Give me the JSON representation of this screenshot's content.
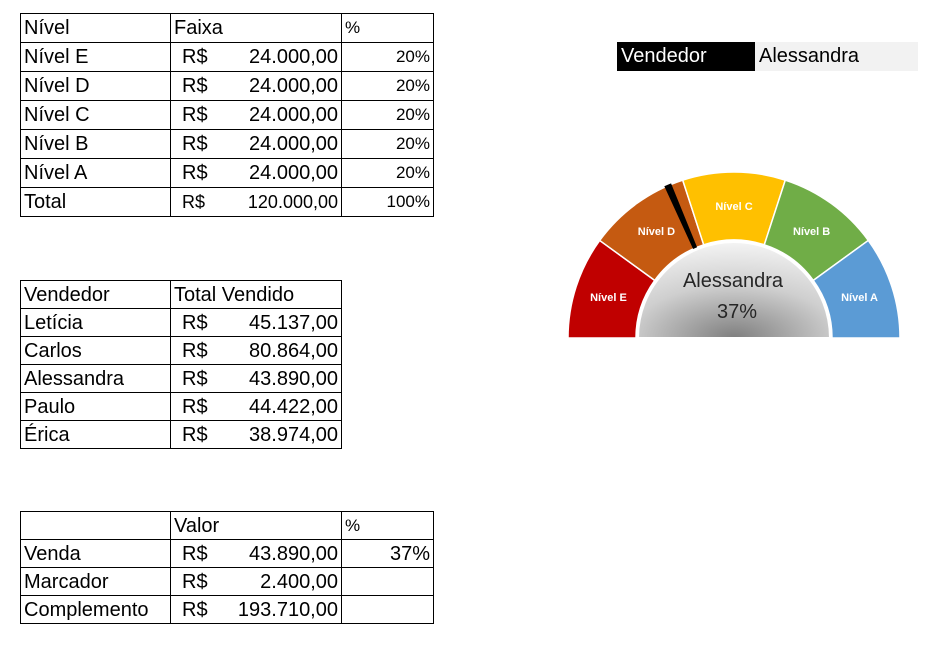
{
  "levels_table": {
    "headers": [
      "Nível",
      "Faixa",
      "%"
    ],
    "rows": [
      {
        "nivel": "Nível E",
        "currency": "R$",
        "faixa": "24.000,00",
        "pct": "20%"
      },
      {
        "nivel": "Nível D",
        "currency": "R$",
        "faixa": "24.000,00",
        "pct": "20%"
      },
      {
        "nivel": "Nível C",
        "currency": "R$",
        "faixa": "24.000,00",
        "pct": "20%"
      },
      {
        "nivel": "Nível B",
        "currency": "R$",
        "faixa": "24.000,00",
        "pct": "20%"
      },
      {
        "nivel": "Nível A",
        "currency": "R$",
        "faixa": "24.000,00",
        "pct": "20%"
      },
      {
        "nivel": "Total",
        "currency": "R$",
        "faixa": "120.000,00",
        "pct": "100%"
      }
    ]
  },
  "sales_table": {
    "headers": [
      "Vendedor",
      "Total Vendido"
    ],
    "rows": [
      {
        "name": "Letícia",
        "currency": "R$",
        "value": "45.137,00"
      },
      {
        "name": "Carlos",
        "currency": "R$",
        "value": "80.864,00"
      },
      {
        "name": "Alessandra",
        "currency": "R$",
        "value": "43.890,00"
      },
      {
        "name": "Paulo",
        "currency": "R$",
        "value": "44.422,00"
      },
      {
        "name": "Érica",
        "currency": "R$",
        "value": "38.974,00"
      }
    ]
  },
  "calc_table": {
    "headers": [
      "",
      "Valor",
      "%"
    ],
    "rows": [
      {
        "label": "Venda",
        "currency": "R$",
        "value": "43.890,00",
        "pct": "37%"
      },
      {
        "label": "Marcador",
        "currency": "R$",
        "value": "2.400,00",
        "pct": ""
      },
      {
        "label": "Complemento",
        "currency": "R$",
        "value": "193.710,00",
        "pct": ""
      }
    ]
  },
  "selector": {
    "label": "Vendedor",
    "value": "Alessandra"
  },
  "gauge": {
    "center_name": "Alessandra",
    "center_pct": "37%",
    "value": 0.37,
    "segments": [
      {
        "label": "Nível E",
        "fraction": 0.2,
        "color": "#c00000"
      },
      {
        "label": "Nível D",
        "fraction": 0.2,
        "color": "#c55a11"
      },
      {
        "label": "Nível C",
        "fraction": 0.2,
        "color": "#ffc000"
      },
      {
        "label": "Nível B",
        "fraction": 0.2,
        "color": "#70ad47"
      },
      {
        "label": "Nível A",
        "fraction": 0.2,
        "color": "#5b9bd5"
      }
    ],
    "marker_color": "#000000"
  }
}
